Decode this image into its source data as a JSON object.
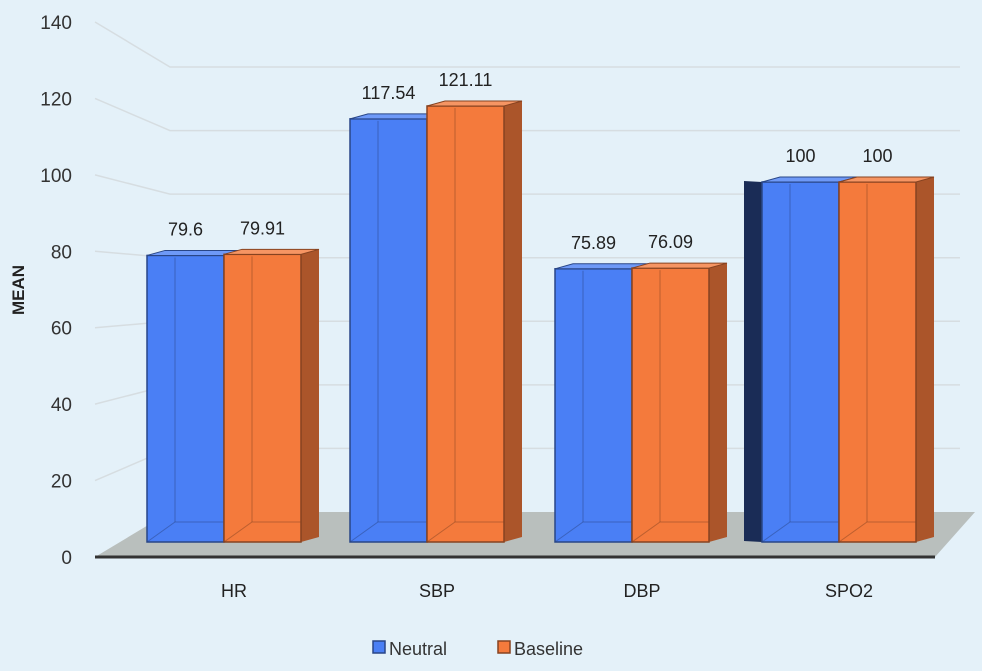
{
  "chart_data": {
    "type": "bar",
    "title": "",
    "xlabel": "",
    "ylabel": "MEAN",
    "ylim": [
      0,
      140
    ],
    "yticks": [
      0,
      20,
      40,
      60,
      80,
      100,
      120,
      140
    ],
    "categories": [
      "HR",
      "SBP",
      "DBP",
      "SPO2"
    ],
    "series": [
      {
        "name": "Neutral",
        "values": [
          79.6,
          117.54,
          75.89,
          100
        ],
        "labels": [
          "79.6",
          "117.54",
          "75.89",
          "100"
        ],
        "color": "#4a7ff5"
      },
      {
        "name": "Baseline",
        "values": [
          79.91,
          121.11,
          76.09,
          100
        ],
        "labels": [
          "79.91",
          "121.11",
          "76.09",
          "100"
        ],
        "color": "#f47a3c"
      }
    ],
    "grid": true,
    "legend": "bottom-center"
  }
}
